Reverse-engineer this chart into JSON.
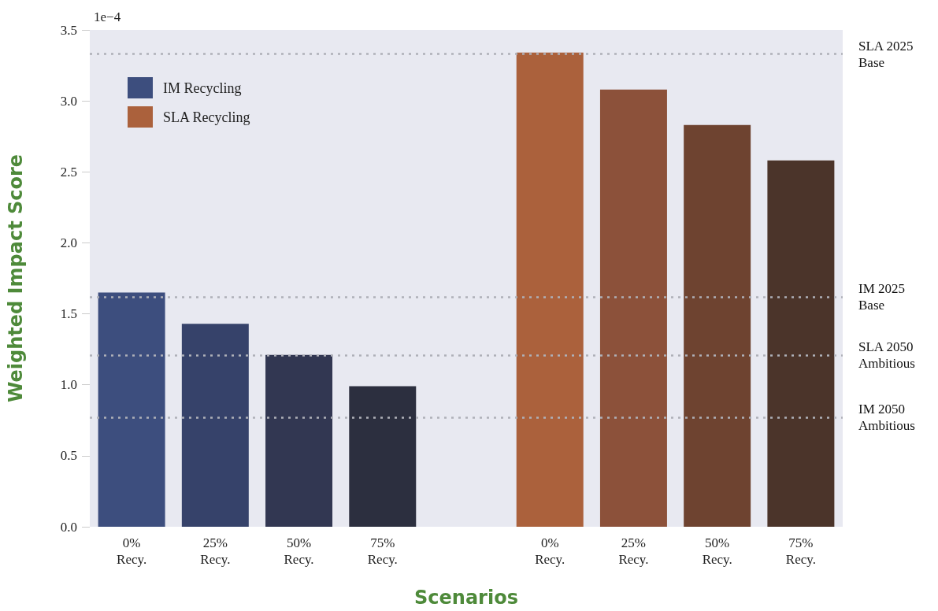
{
  "chart_data": {
    "type": "bar",
    "xlabel": "Scenarios",
    "ylabel": "Weighted Impact Score",
    "annotations": [
      "1e−4"
    ],
    "categories": [
      "0%\nRecy.",
      "25%\nRecy.",
      "50%\nRecy.",
      "75%\nRecy.",
      null,
      "0%\nRecy.",
      "25%\nRecy.",
      "50%\nRecy.",
      "75%\nRecy."
    ],
    "series": [
      {
        "name": "IM Recycling",
        "color": "#3d4e7e",
        "values": [
          1.65,
          1.43,
          1.21,
          0.99,
          null,
          null,
          null,
          null,
          null
        ],
        "colors": [
          "#3d4e7e",
          "#36426a",
          "#323752",
          "#2c2f3f",
          null,
          null,
          null,
          null,
          null
        ]
      },
      {
        "name": "SLA Recycling",
        "color": "#ab613c",
        "values": [
          null,
          null,
          null,
          null,
          null,
          3.34,
          3.08,
          2.83,
          2.58
        ],
        "colors": [
          null,
          null,
          null,
          null,
          null,
          "#ab613c",
          "#8c513a",
          "#6e4330",
          "#4b342a"
        ]
      }
    ],
    "ylim": [
      0,
      3.5
    ],
    "yticks": [
      {
        "value": 0,
        "label": "0.0"
      },
      0.5,
      {
        "value": 1,
        "label": "1.0"
      },
      1.5,
      {
        "value": 2,
        "label": "2.0"
      },
      2.5,
      {
        "value": 3,
        "label": "3.0"
      },
      3.5
    ],
    "ref_lines": [
      {
        "axis": "y",
        "value": 3.335,
        "label": "SLA 2025\nBase",
        "color": "#aeb0b8",
        "line_style": "dotted"
      },
      {
        "axis": "y",
        "value": 1.62,
        "label": "IM 2025\nBase",
        "color": "#aeb0b8",
        "line_style": "dotted"
      },
      {
        "axis": "y",
        "value": 1.21,
        "label": "SLA 2050\nAmbitious",
        "color": "#aeb0b8",
        "line_style": "dotted"
      },
      {
        "axis": "y",
        "value": 0.77,
        "label": "IM 2050\nAmbitious",
        "color": "#aeb0b8",
        "line_style": "dotted"
      }
    ],
    "grid": false,
    "legend": "top left"
  }
}
